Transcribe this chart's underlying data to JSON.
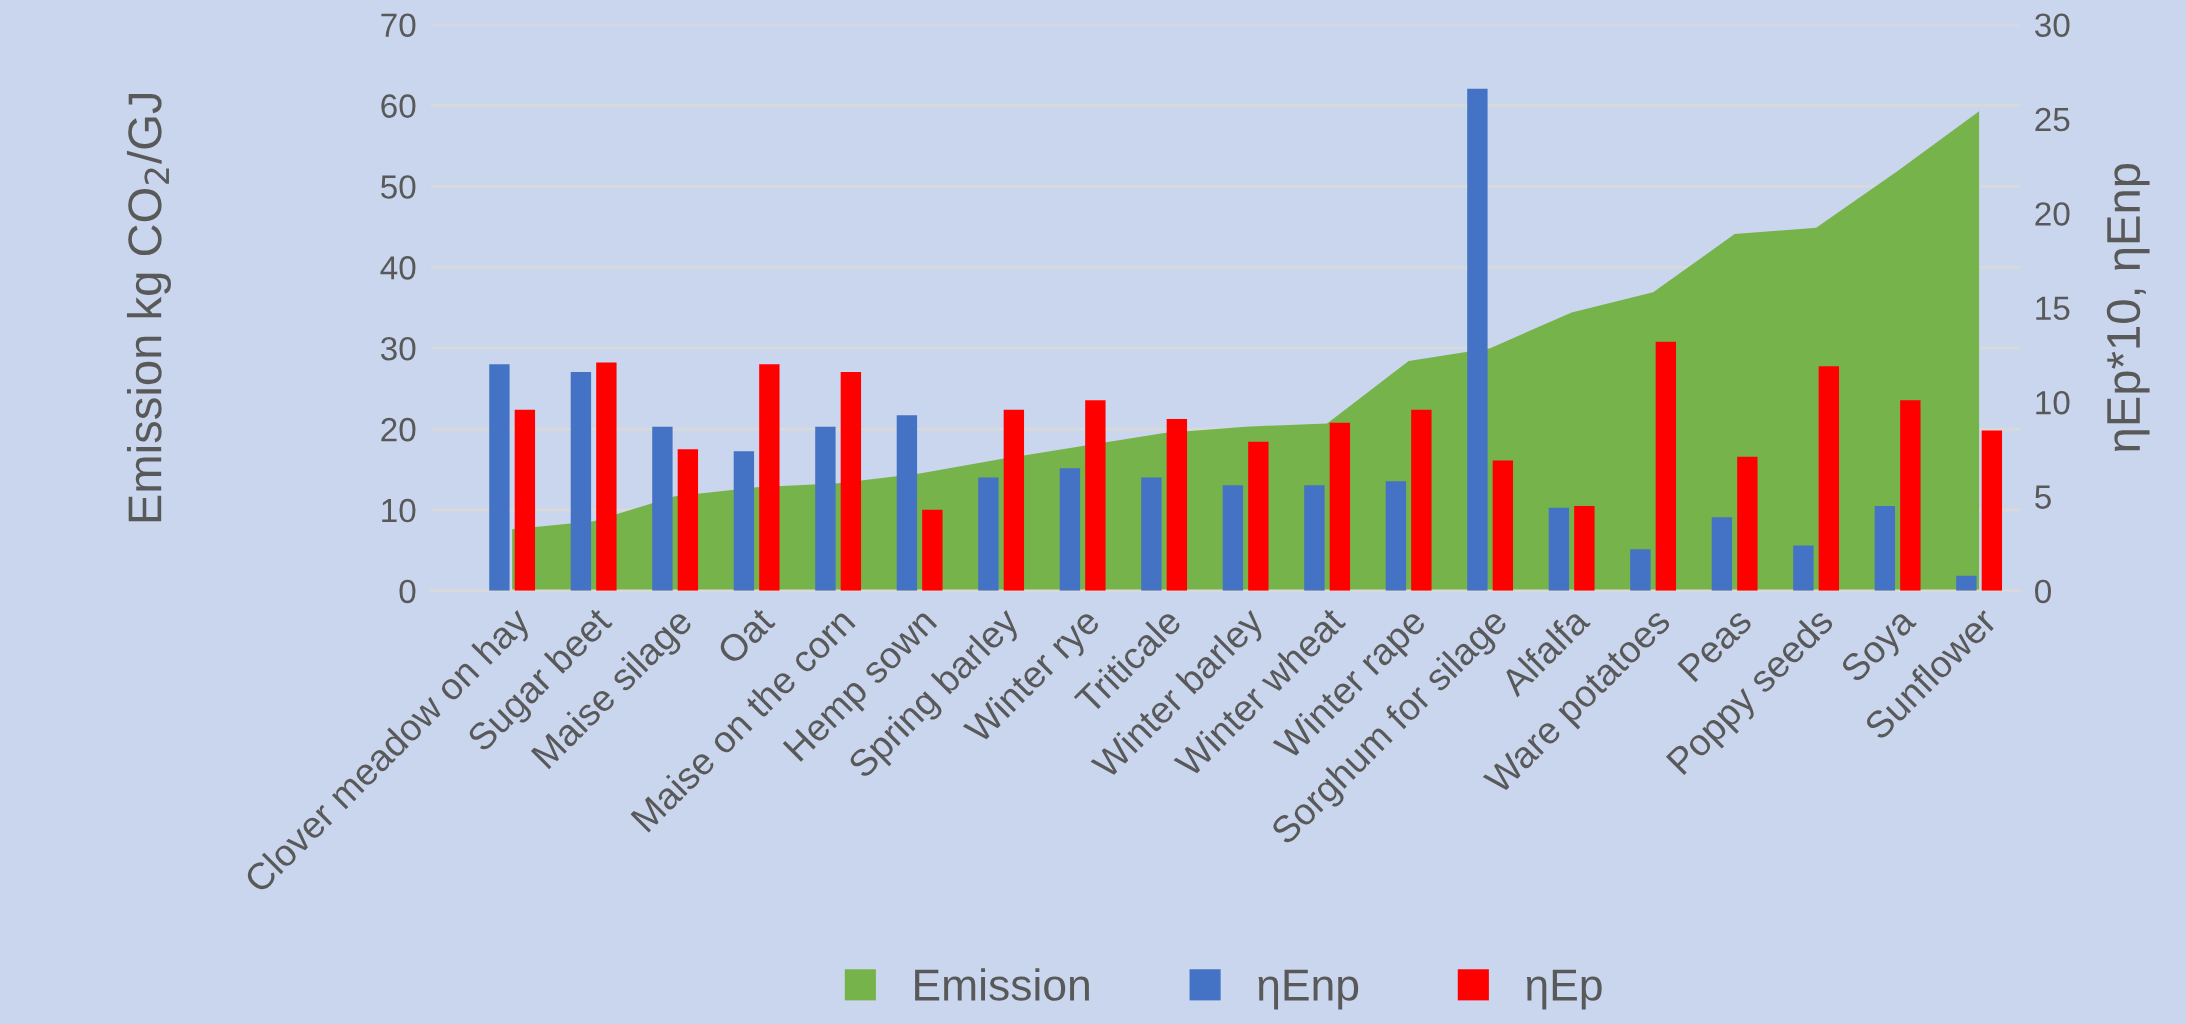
{
  "chart_data": {
    "type": "bar",
    "categories": [
      "Clover meadow on hay",
      "Sugar beet",
      "Maise silage",
      "Oat",
      "Maise on the corn",
      "Hemp sown",
      "Spring barley",
      "Winter rye",
      "Triticale",
      "Winter barley",
      "Winter wheat",
      "Winter rape",
      "Sorghum for silage",
      "Alfalfa",
      "Ware potatoes",
      "Peas",
      "Poppy seeds",
      "Soya",
      "Sunflower"
    ],
    "series": [
      {
        "name": "Emission",
        "type": "area",
        "color": "#77b34b",
        "values": [
          7.6,
          8.6,
          11.7,
          12.8,
          13.3,
          14.5,
          16.3,
          17.9,
          19.5,
          20.3,
          20.7,
          28.4,
          30.0,
          34.4,
          36.9,
          44.1,
          44.9,
          51.9,
          59.3
        ]
      },
      {
        "name": "ηEnp",
        "axis": "y2",
        "color": "#4472c4",
        "values": [
          12.0,
          11.6,
          8.7,
          7.4,
          8.7,
          9.3,
          6.0,
          6.5,
          6.0,
          5.6,
          5.6,
          5.8,
          26.6,
          4.4,
          2.2,
          3.9,
          2.4,
          4.5,
          0.8
        ]
      },
      {
        "name": "ηEp",
        "axis": "y2",
        "color": "#ff0000",
        "values": [
          9.6,
          12.1,
          7.5,
          12.0,
          11.6,
          4.3,
          9.6,
          10.1,
          9.1,
          7.9,
          8.9,
          9.6,
          6.9,
          4.5,
          13.2,
          7.1,
          11.9,
          10.1,
          8.5
        ]
      }
    ],
    "ylabel": "Emission kg CO$_{2}$/GJ",
    "y2label": "ηEp*10, ηEnp",
    "ylim": [
      0,
      70
    ],
    "yticks": [
      0,
      10,
      20,
      30,
      40,
      50,
      60,
      70
    ],
    "y2lim": [
      0,
      30
    ],
    "y2ticks": [
      0,
      5,
      10,
      15,
      20,
      25,
      30
    ],
    "grid": "y",
    "legend": "bottom"
  }
}
